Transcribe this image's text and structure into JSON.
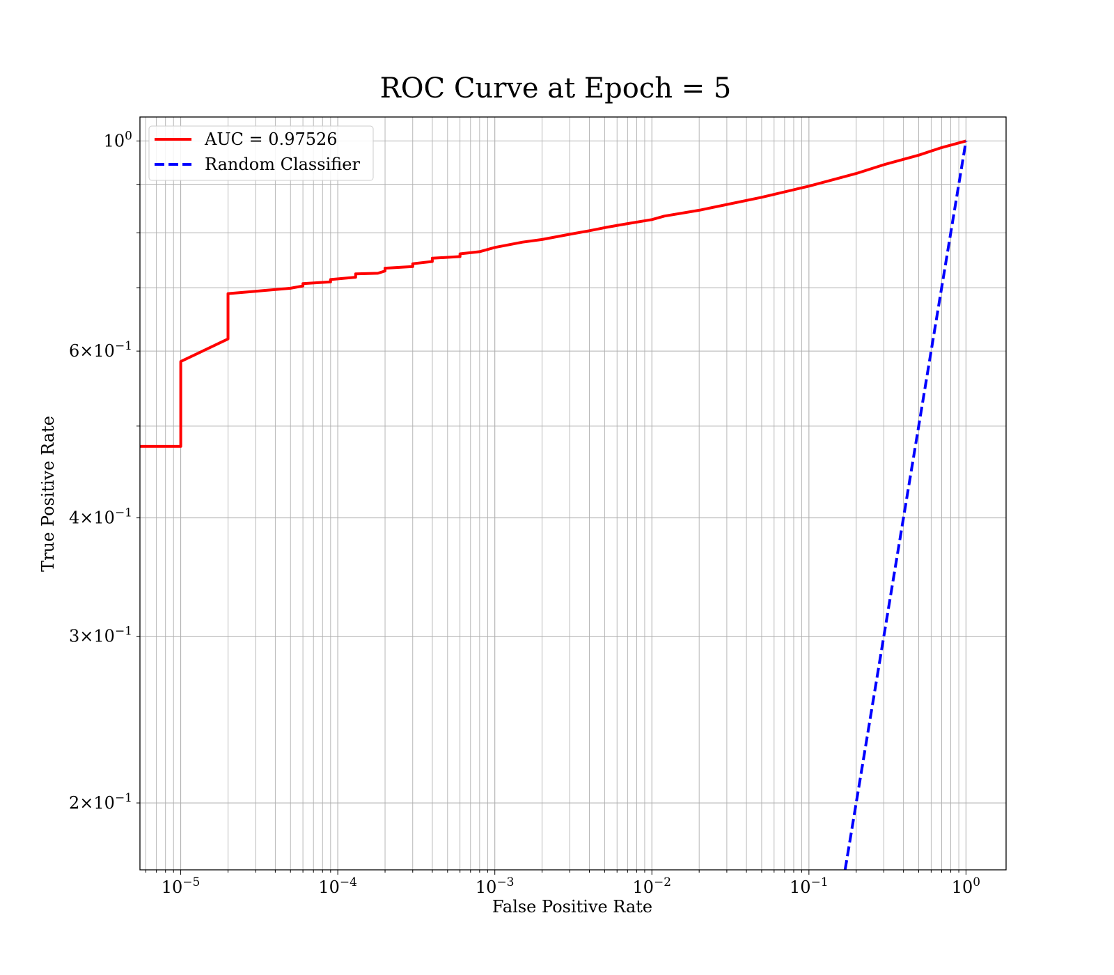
{
  "chart_data": {
    "type": "line",
    "title": "ROC Curve at Epoch = 5",
    "xlabel": "False Positive Rate",
    "ylabel": "True Positive Rate",
    "xscale": "log",
    "yscale": "log",
    "xlim": [
      5.5e-06,
      1.8
    ],
    "ylim": [
      0.17,
      1.06
    ],
    "grid": true,
    "grid_minor": true,
    "legend_position": "top-left",
    "x_ticks": [
      {
        "value": 1e-05,
        "base": "10",
        "exp": "−5"
      },
      {
        "value": 0.0001,
        "base": "10",
        "exp": "−4"
      },
      {
        "value": 0.001,
        "base": "10",
        "exp": "−3"
      },
      {
        "value": 0.01,
        "base": "10",
        "exp": "−2"
      },
      {
        "value": 0.1,
        "base": "10",
        "exp": "−1"
      },
      {
        "value": 1,
        "base": "10",
        "exp": "0"
      }
    ],
    "y_ticks": [
      {
        "value": 1.0,
        "coef": "",
        "base": "10",
        "exp": "0"
      },
      {
        "value": 0.6,
        "coef": "6×",
        "base": "10",
        "exp": "−1"
      },
      {
        "value": 0.4,
        "coef": "4×",
        "base": "10",
        "exp": "−1"
      },
      {
        "value": 0.3,
        "coef": "3×",
        "base": "10",
        "exp": "−1"
      },
      {
        "value": 0.2,
        "coef": "2×",
        "base": "10",
        "exp": "−1"
      }
    ],
    "y_minor_grid": [
      0.5,
      0.7,
      0.8,
      0.9
    ],
    "series": [
      {
        "name": "AUC = 0.97526",
        "color": "#ff0000",
        "style": "solid",
        "x": [
          5.5e-06,
          1e-05,
          1e-05,
          2e-05,
          2e-05,
          3e-05,
          5e-05,
          6e-05,
          6e-05,
          9e-05,
          9e-05,
          0.00013,
          0.00013,
          0.00018,
          0.0002,
          0.0002,
          0.0003,
          0.0003,
          0.0004,
          0.0004,
          0.0006,
          0.0006,
          0.0008,
          0.001,
          0.0015,
          0.002,
          0.003,
          0.004,
          0.005,
          0.007,
          0.01,
          0.012,
          0.02,
          0.05,
          0.1,
          0.2,
          0.3,
          0.5,
          0.7,
          1.0
        ],
        "y": [
          0.476,
          0.476,
          0.585,
          0.618,
          0.69,
          0.694,
          0.699,
          0.703,
          0.707,
          0.71,
          0.714,
          0.718,
          0.724,
          0.725,
          0.729,
          0.734,
          0.737,
          0.742,
          0.746,
          0.752,
          0.755,
          0.76,
          0.764,
          0.772,
          0.782,
          0.787,
          0.797,
          0.804,
          0.81,
          0.818,
          0.826,
          0.833,
          0.845,
          0.872,
          0.896,
          0.924,
          0.944,
          0.966,
          0.984,
          1.0
        ]
      },
      {
        "name": "Random Classifier",
        "color": "#0000ff",
        "style": "dashed",
        "x": [
          0.17,
          1.0
        ],
        "y": [
          0.17,
          1.0
        ]
      }
    ]
  }
}
